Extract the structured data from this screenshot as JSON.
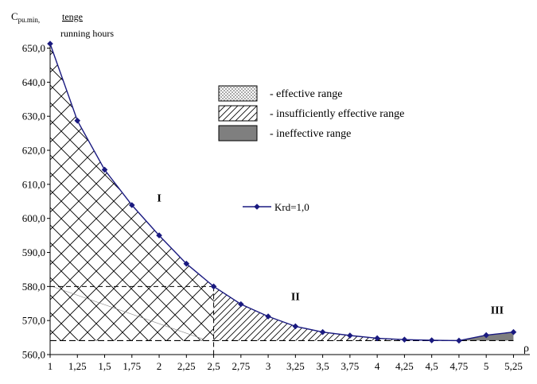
{
  "chart_data": {
    "type": "line",
    "ylabel": {
      "symbol": "C",
      "subscript": "pu.min,",
      "numerator": "tenge",
      "denominator": "running hours"
    },
    "xlabel": "ρ",
    "x_ticks": [
      "1",
      "1,25",
      "1,5",
      "1,75",
      "2",
      "2,25",
      "2,5",
      "2,75",
      "3",
      "3,25",
      "3,5",
      "3,75",
      "4",
      "4,25",
      "4,5",
      "4,75",
      "5",
      "5,25"
    ],
    "y_ticks": [
      "560,0",
      "570,0",
      "580,0",
      "590,0",
      "600,0",
      "610,0",
      "620,0",
      "630,0",
      "640,0",
      "650,0"
    ],
    "xlim": [
      1,
      5.4
    ],
    "ylim": [
      560,
      652
    ],
    "series": [
      {
        "name": "Krd=1,0",
        "color": "#1a1a80",
        "x": [
          1,
          1.25,
          1.5,
          1.75,
          2,
          2.25,
          2.5,
          2.75,
          3,
          3.25,
          3.5,
          3.75,
          4,
          4.25,
          4.5,
          4.75,
          5,
          5.25
        ],
        "y": [
          651.3,
          628.7,
          614.3,
          603.9,
          595.0,
          586.7,
          580.0,
          574.8,
          571.2,
          568.3,
          566.6,
          565.6,
          564.8,
          564.4,
          564.2,
          564.1,
          565.7,
          566.6
        ]
      }
    ],
    "reference_lines": {
      "min_cost": 564.1,
      "boundary_x": 2.5,
      "boundary_y": 580.0
    },
    "regions": [
      {
        "label": "I",
        "x_range": [
          1,
          2.5
        ],
        "pattern": "crosshatch"
      },
      {
        "label": "II",
        "x_range": [
          2.5,
          4.75
        ],
        "pattern": "diagonal"
      },
      {
        "label": "III",
        "x_range": [
          4.75,
          5.25
        ],
        "pattern": "solid-gray"
      }
    ],
    "legend_ranges": [
      {
        "pattern": "crosshatch",
        "label": "- effective range"
      },
      {
        "pattern": "diagonal",
        "label": "- insufficiently effective range"
      },
      {
        "pattern": "solid-gray",
        "label": "- ineffective range"
      }
    ],
    "legend_position": "top-center"
  }
}
